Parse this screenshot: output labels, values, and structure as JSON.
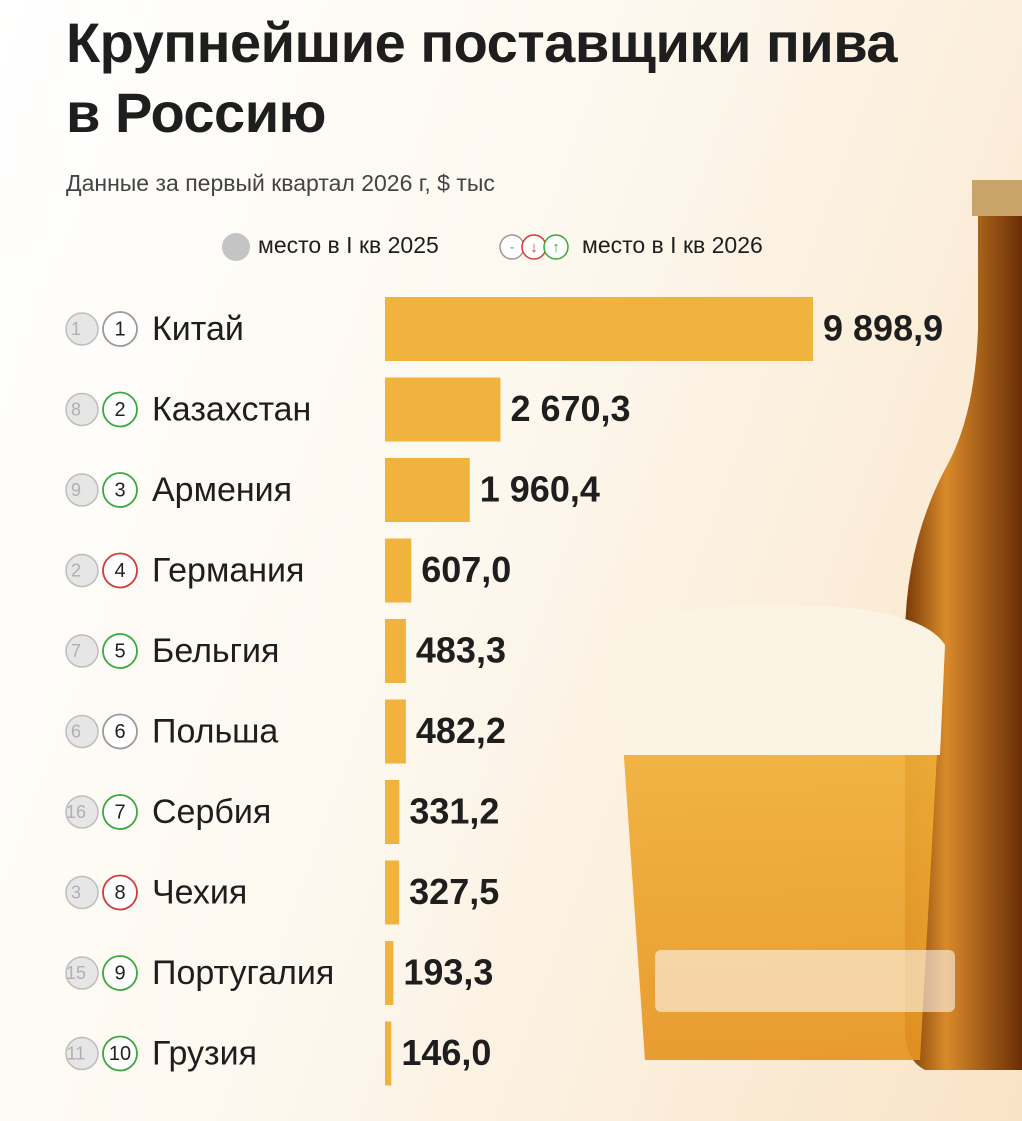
{
  "chart_data": {
    "type": "bar",
    "title": "Крупнейшие поставщики пива в Россию",
    "subtitle": "Данные за первый квартал 2026 г, $ тыс",
    "legend": {
      "previous": "место в I кв 2025",
      "current": "место в I кв 2026",
      "marks": [
        {
          "symbol": "-",
          "color": "#9a9a9a"
        },
        {
          "symbol": "↓",
          "color": "#d23a3a"
        },
        {
          "symbol": "↑",
          "color": "#3aa83a"
        }
      ]
    },
    "categories": [
      "Китай",
      "Казахстан",
      "Армения",
      "Германия",
      "Бельгия",
      "Польша",
      "Сербия",
      "Чехия",
      "Португалия",
      "Грузия"
    ],
    "rank_2025": [
      1,
      8,
      9,
      2,
      7,
      6,
      16,
      3,
      15,
      11
    ],
    "rank_2026": [
      1,
      2,
      3,
      4,
      5,
      6,
      7,
      8,
      9,
      10
    ],
    "values": [
      9898.9,
      2670.3,
      1960.4,
      607.0,
      483.3,
      482.2,
      331.2,
      327.5,
      193.3,
      146.0
    ],
    "value_labels": [
      "9 898,9",
      "2 670,3",
      "1 960,4",
      "607,0",
      "483,3",
      "482,2",
      "331,2",
      "327,5",
      "193,3",
      "146,0"
    ],
    "color": "#efb33e"
  }
}
